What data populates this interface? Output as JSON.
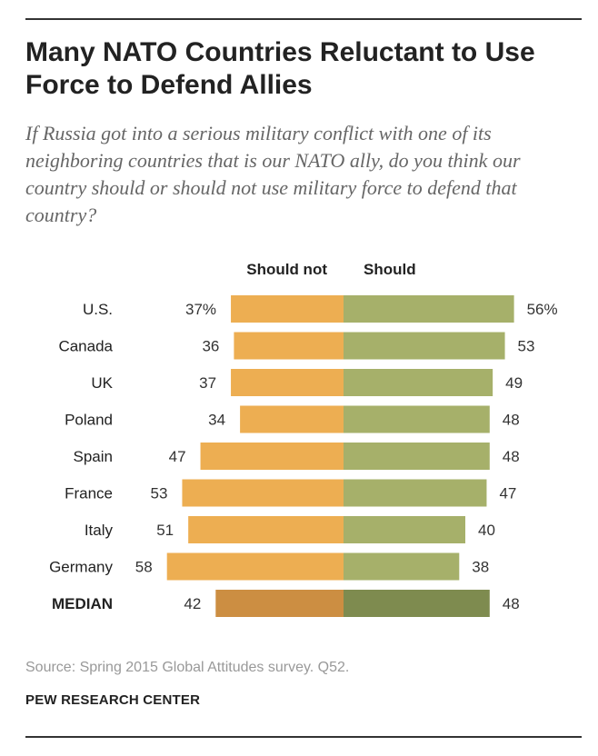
{
  "title": "Many NATO Countries Reluctant to Use Force to Defend Allies",
  "subtitle": "If Russia got into a serious military conflict with one of its neighboring countries that is our NATO ally, do you think our country should or should not use military force to defend that country?",
  "source": "Source: Spring 2015 Global Attitudes survey. Q52.",
  "org": "PEW RESEARCH CENTER",
  "colors": {
    "should_not": "#EDAE52",
    "should": "#A6B06A",
    "should_not_median": "#CC8E42",
    "should_median": "#7E8B4F"
  },
  "chart_data": {
    "type": "bar",
    "orientation": "horizontal-diverging",
    "categories": [
      "U.S.",
      "Canada",
      "UK",
      "Poland",
      "Spain",
      "France",
      "Italy",
      "Germany",
      "MEDIAN"
    ],
    "series": [
      {
        "name": "Should not",
        "values": [
          37,
          36,
          37,
          34,
          47,
          53,
          51,
          58,
          42
        ],
        "labels": [
          "37%",
          "36",
          "37",
          "34",
          "47",
          "53",
          "51",
          "58",
          "42"
        ]
      },
      {
        "name": "Should",
        "values": [
          56,
          53,
          49,
          48,
          48,
          47,
          40,
          38,
          48
        ],
        "labels": [
          "56%",
          "53",
          "49",
          "48",
          "48",
          "47",
          "40",
          "38",
          "48"
        ]
      }
    ],
    "highlight_category": "MEDIAN",
    "legend": "top-center",
    "grid": false,
    "xlim": [
      0,
      60
    ]
  }
}
